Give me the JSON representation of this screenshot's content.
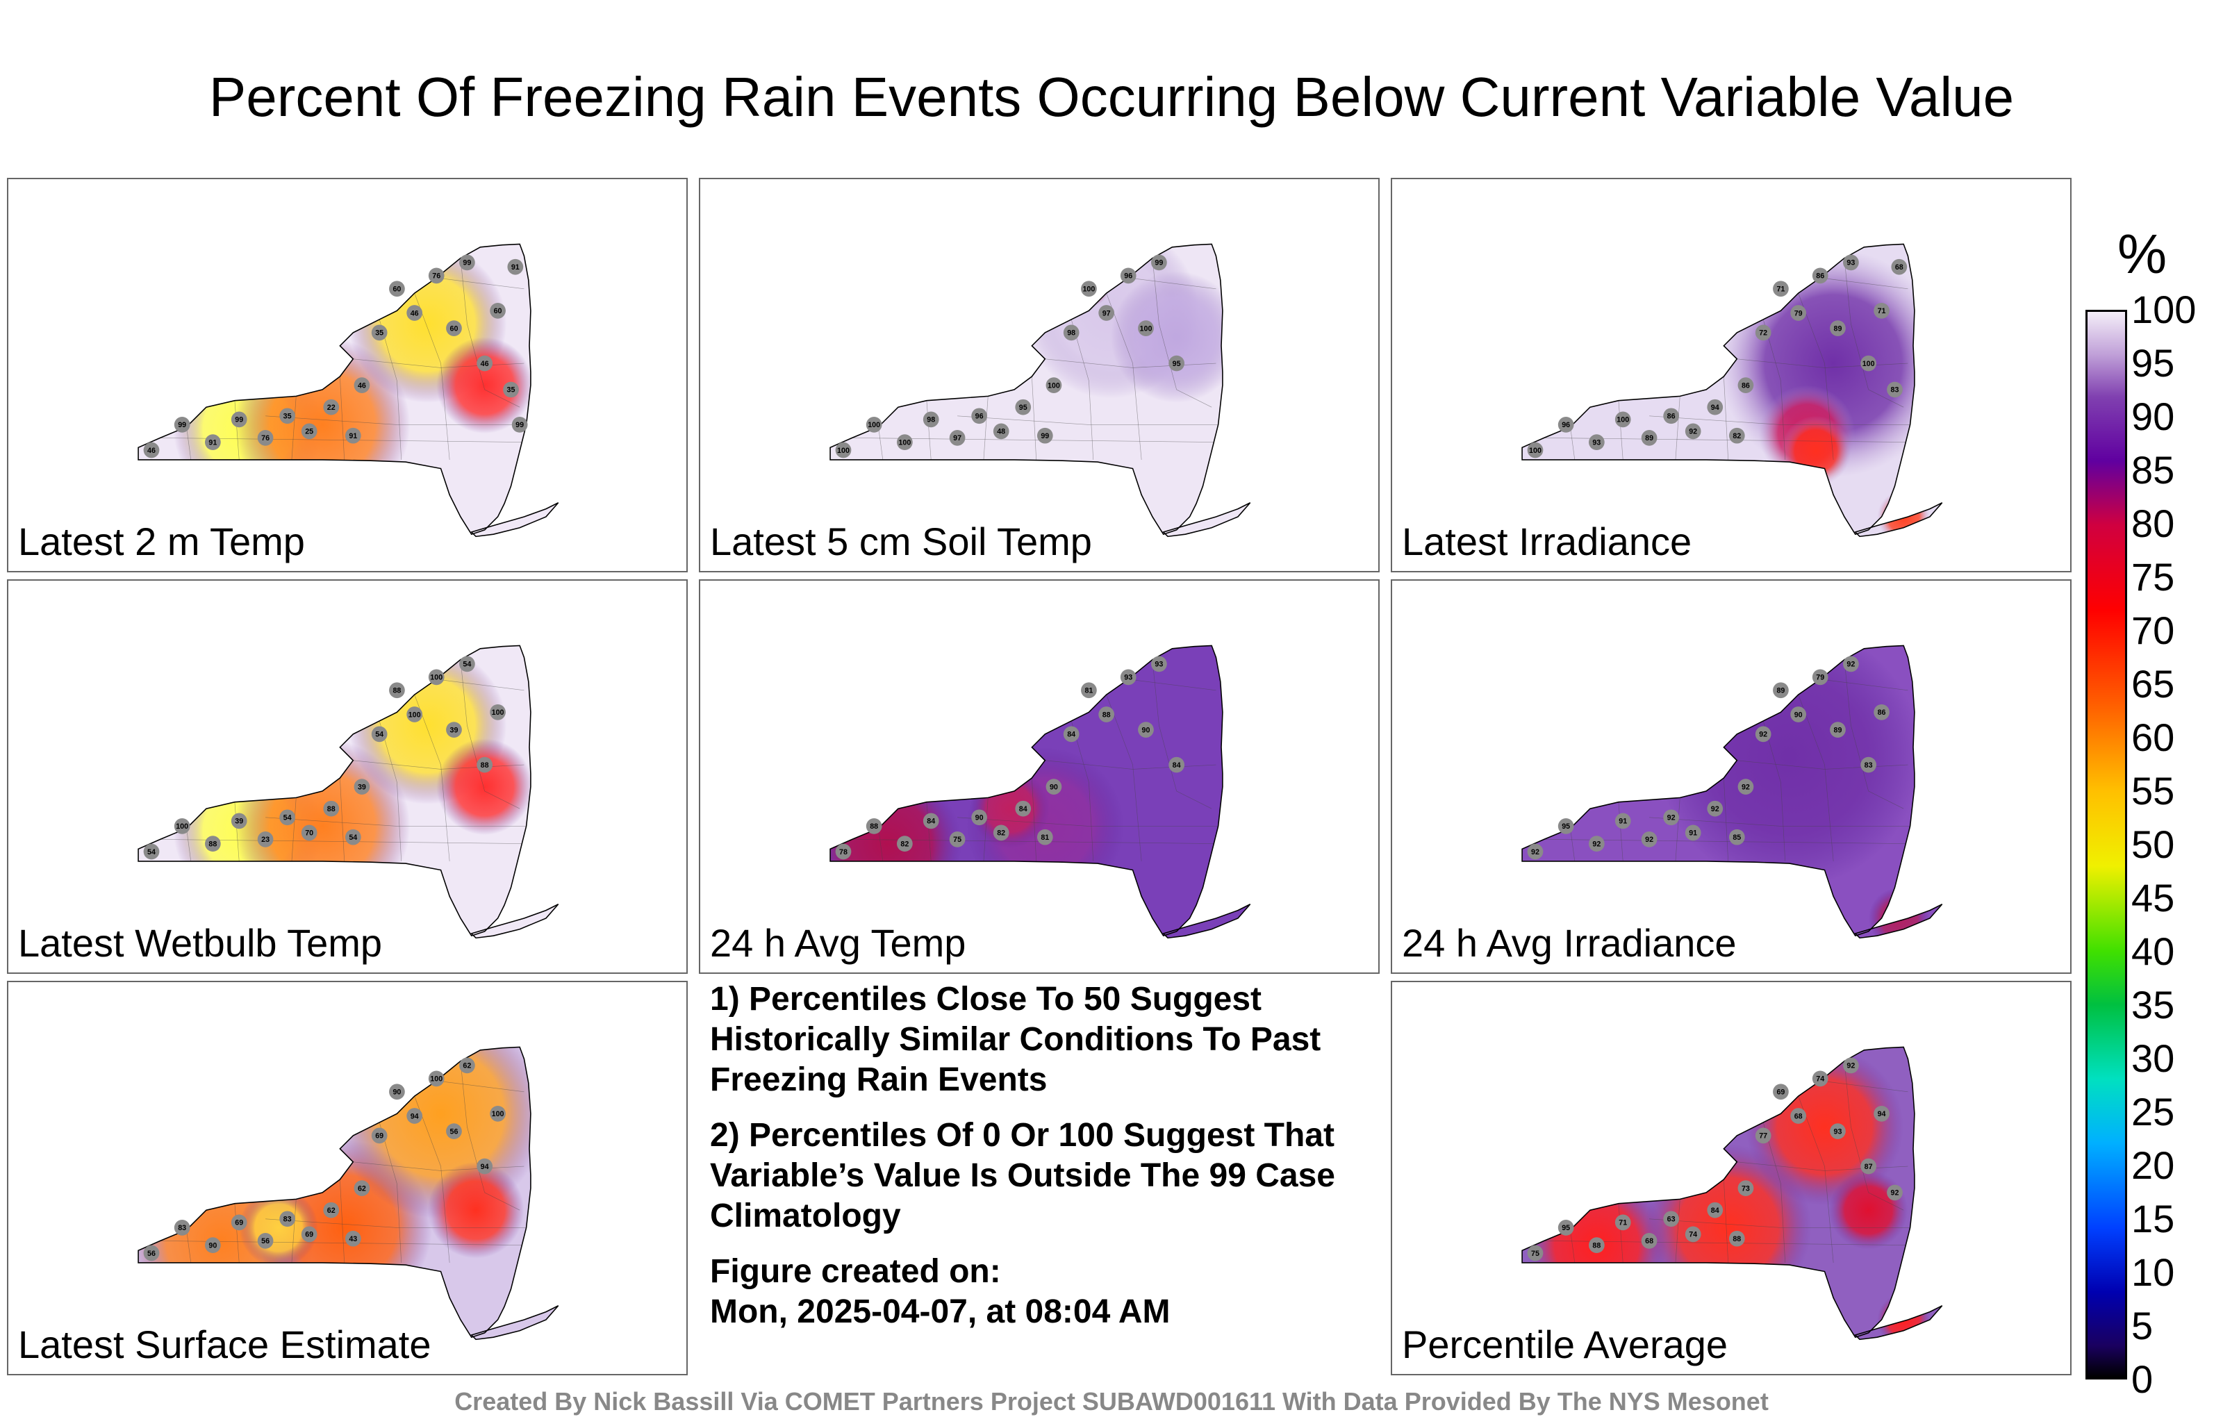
{
  "title": "Percent Of Freezing Rain Events Occurring Below Current Variable Value",
  "panels": [
    {
      "label": "Latest 2 m Temp",
      "scheme": "hot",
      "labels": [
        "46",
        "99",
        "91",
        "99",
        "76",
        "35",
        "25",
        "22",
        "91",
        "46",
        "35",
        "60",
        "46",
        "76",
        "60",
        "99",
        "46",
        "60",
        "35",
        "91",
        "99"
      ]
    },
    {
      "label": "Latest 5 cm Soil Temp",
      "scheme": "cool",
      "labels": [
        "100",
        "100",
        "100",
        "98",
        "97",
        "96",
        "48",
        "95",
        "99",
        "100",
        "98",
        "100",
        "97",
        "96",
        "100",
        "99",
        "95"
      ]
    },
    {
      "label": "Latest Irradiance",
      "scheme": "irr",
      "labels": [
        "100",
        "96",
        "93",
        "100",
        "89",
        "86",
        "92",
        "94",
        "82",
        "86",
        "72",
        "71",
        "79",
        "86",
        "89",
        "93",
        "100",
        "71",
        "83",
        "68"
      ]
    },
    {
      "label": "Latest Wetbulb Temp",
      "scheme": "hot",
      "labels": [
        "54",
        "100",
        "88",
        "39",
        "23",
        "54",
        "70",
        "88",
        "54",
        "39",
        "54",
        "88",
        "100",
        "100",
        "39",
        "54",
        "88",
        "100"
      ]
    },
    {
      "label": "24 h Avg Temp",
      "scheme": "avg",
      "labels": [
        "78",
        "88",
        "82",
        "84",
        "75",
        "90",
        "82",
        "84",
        "81",
        "90",
        "84",
        "81",
        "88",
        "93",
        "90",
        "93",
        "84"
      ]
    },
    {
      "label": "24 h Avg Irradiance",
      "scheme": "avg2",
      "labels": [
        "92",
        "95",
        "92",
        "91",
        "92",
        "92",
        "91",
        "92",
        "85",
        "92",
        "92",
        "89",
        "90",
        "79",
        "89",
        "92",
        "83",
        "86"
      ]
    },
    {
      "label": "Latest Surface Estimate",
      "scheme": "est",
      "labels": [
        "56",
        "83",
        "90",
        "69",
        "56",
        "83",
        "69",
        "62",
        "43",
        "62",
        "69",
        "90",
        "94",
        "100",
        "56",
        "62",
        "94",
        "100"
      ]
    },
    {
      "label": "Percentile Average",
      "scheme": "pavg",
      "labels": [
        "75",
        "95",
        "88",
        "71",
        "68",
        "63",
        "74",
        "84",
        "88",
        "73",
        "77",
        "69",
        "68",
        "74",
        "93",
        "92",
        "87",
        "94",
        "92"
      ]
    }
  ],
  "notes": [
    "1) Percentiles Close To 50 Suggest Historically Similar Conditions To Past Freezing Rain Events",
    "2) Percentiles Of 0 Or 100 Suggest That Variable’s Value Is Outside The 99 Case Climatology",
    "Figure created on:",
    "Mon, 2025-04-07, at 08:04 AM"
  ],
  "colorbar": {
    "unit": "%",
    "ticks": [
      "100",
      "95",
      "90",
      "85",
      "80",
      "75",
      "70",
      "65",
      "60",
      "55",
      "50",
      "45",
      "40",
      "35",
      "30",
      "25",
      "20",
      "15",
      "10",
      "5",
      "0"
    ],
    "min": 0,
    "max": 100
  },
  "footer": "Created By Nick Bassill Via COMET Partners Project SUBAWD001611 With Data Provided By The NYS Mesonet"
}
